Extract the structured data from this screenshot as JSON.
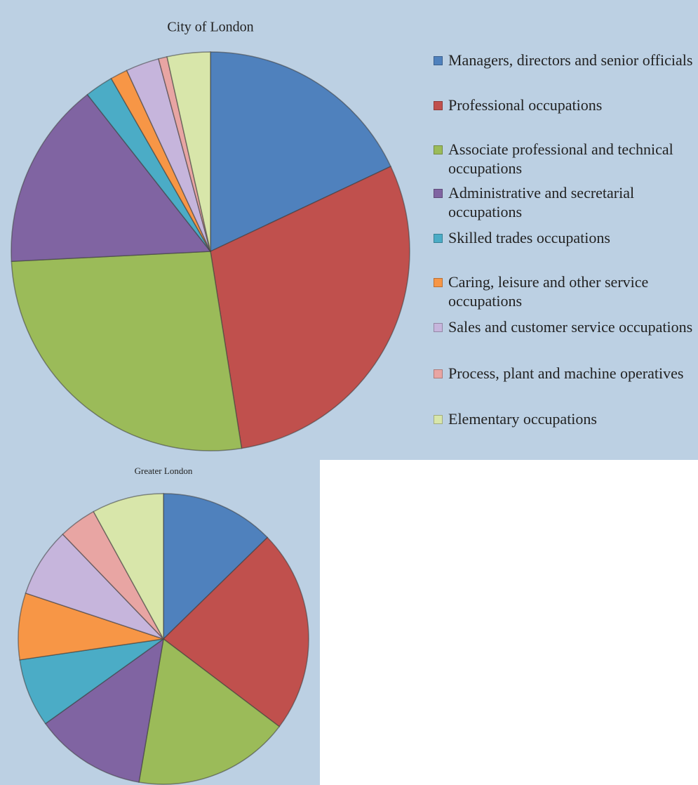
{
  "chart_data": [
    {
      "type": "pie",
      "title": "City of London",
      "categories": [
        "Managers, directors and senior officials",
        "Professional occupations",
        "Associate professional and technical occupations",
        "Administrative and secretarial occupations",
        "Skilled trades occupations",
        "Caring, leisure and other service occupations",
        "Sales and customer service occupations",
        "Process, plant and machine operatives",
        "Elementary occupations"
      ],
      "values": [
        18,
        29.5,
        26.7,
        15.2,
        2.3,
        1.4,
        2.7,
        0.7,
        3.5
      ],
      "colors": [
        "#4f81bd",
        "#c0504d",
        "#9bbb59",
        "#8064a2",
        "#4bacc6",
        "#f79646",
        "#c6b5dc",
        "#e8a5a3",
        "#d8e6aa"
      ],
      "legend": "right"
    },
    {
      "type": "pie",
      "title": "Greater London",
      "values": [
        12.7,
        22.6,
        17.4,
        12.4,
        7.6,
        7.4,
        7.7,
        4.2,
        8.0
      ]
    }
  ]
}
